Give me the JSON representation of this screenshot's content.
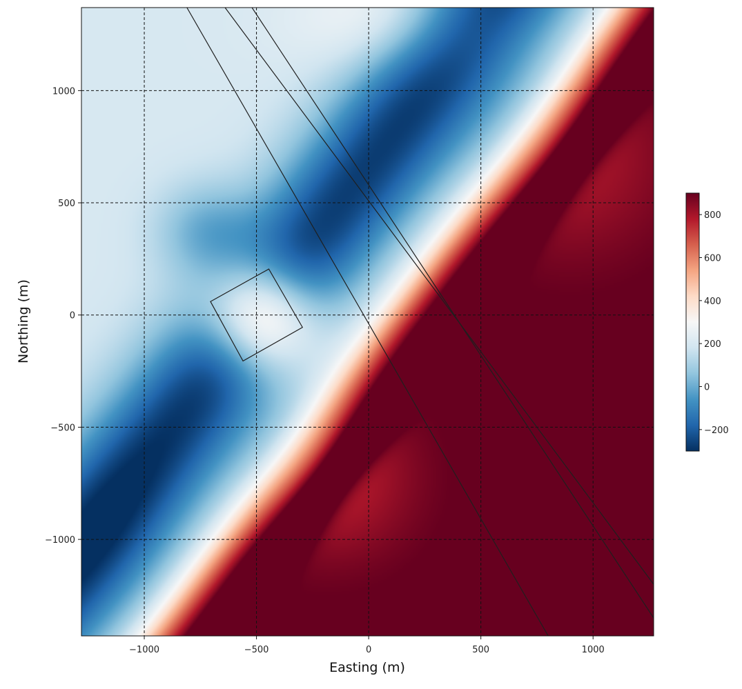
{
  "chart_data": {
    "type": "heatmap",
    "title": "",
    "xlabel": "Easting (m)",
    "ylabel": "Northing (m)",
    "xlim": [
      -1280,
      1270
    ],
    "ylim": [
      -1430,
      1370
    ],
    "grid": true,
    "x_ticks": [
      -1000,
      -500,
      0,
      500,
      1000
    ],
    "y_ticks": [
      -1000,
      -500,
      0,
      500,
      1000
    ],
    "x_tick_labels": [
      "−1000",
      "−500",
      "0",
      "500",
      "1000"
    ],
    "y_tick_labels": [
      "−1000",
      "−500",
      "0",
      "500",
      "1000"
    ],
    "colormap": "RdBu_r",
    "colormap_stops": [
      "#053061",
      "#2166ac",
      "#4393c3",
      "#92c5de",
      "#d1e5f0",
      "#f7f7f7",
      "#fddbc7",
      "#f4a582",
      "#d6604d",
      "#b2182b",
      "#67001f"
    ],
    "colorbar": {
      "range": [
        -300,
        900
      ],
      "ticks": [
        -200,
        0,
        200,
        400,
        600,
        800
      ],
      "tick_labels": [
        "−200",
        "0",
        "200",
        "400",
        "600",
        "800"
      ],
      "placement": "right"
    },
    "contour_lines": [
      {
        "points": [
          [
            -810,
            1370
          ],
          [
            800,
            -1430
          ]
        ]
      },
      {
        "points": [
          [
            -640,
            1370
          ],
          [
            1270,
            -1200
          ]
        ]
      },
      {
        "points": [
          [
            -520,
            1370
          ],
          [
            1270,
            -1350
          ]
        ]
      }
    ],
    "outlined_square": {
      "corners": [
        [
          -705,
          60
        ],
        [
          -445,
          205
        ],
        [
          -295,
          -55
        ],
        [
          -560,
          -205
        ]
      ]
    }
  }
}
